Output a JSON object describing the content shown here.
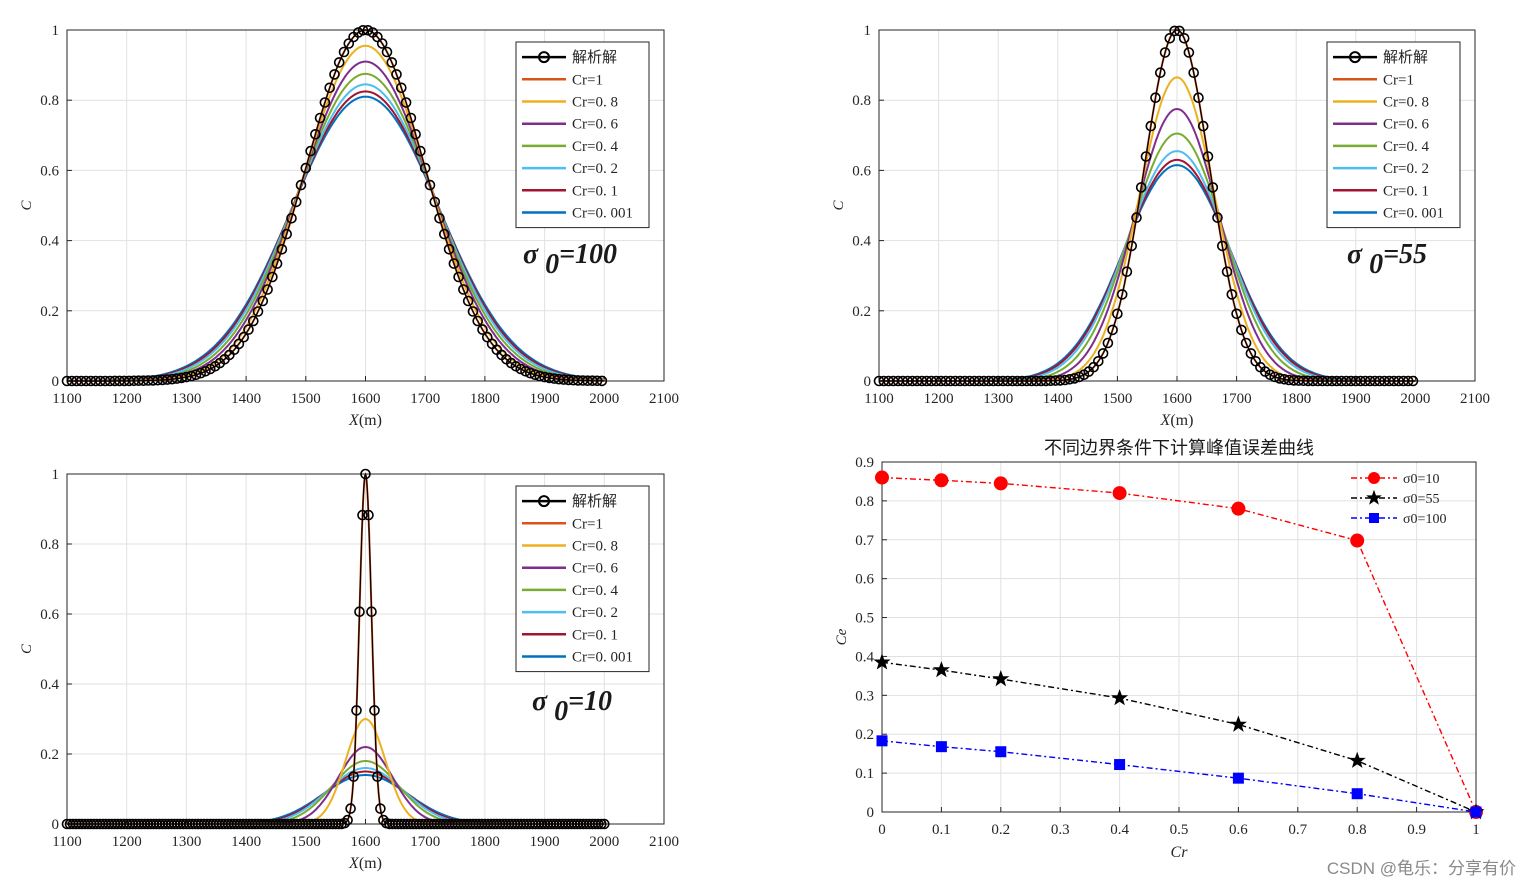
{
  "colors": {
    "analytic": "#000000",
    "cr": [
      "#d95319",
      "#edb120",
      "#7e2f8e",
      "#77ac30",
      "#4dbeee",
      "#a2142f",
      "#0072bd"
    ],
    "error_red": "#ff0000",
    "error_black": "#000000",
    "error_blue": "#0000ff",
    "grid": "#e1e1e1",
    "axis": "#262626"
  },
  "chart_data": [
    {
      "type": "line",
      "xlabel": "X",
      "xlabel_unit": "(m)",
      "ylabel": "C",
      "xlim": [
        1100,
        2100
      ],
      "ylim": [
        0,
        1
      ],
      "x_ticks": [
        "1100",
        "1200",
        "1300",
        "1400",
        "1500",
        "1600",
        "1700",
        "1800",
        "1900",
        "2000",
        "2100"
      ],
      "y_ticks": [
        "0",
        "0.2",
        "0.4",
        "0.6",
        "0.8",
        "1"
      ],
      "annotation": "σ 0=100",
      "annotation_symbol": "σ",
      "annotation_sub": "0",
      "annotation_value": "=100",
      "x_range": [
        1100,
        2000
      ],
      "center": 1600,
      "sigma0": 100,
      "legend": [
        "解析解",
        "Cr=1",
        "Cr=0. 8",
        "Cr=0. 6",
        "Cr=0. 4",
        "Cr=0. 2",
        "Cr=0. 1",
        "Cr=0. 001"
      ],
      "series": [
        {
          "name": "解析解",
          "marker": "circle",
          "peak": 1.0
        },
        {
          "name": "Cr=1",
          "peak": 1.0
        },
        {
          "name": "Cr=0. 8",
          "peak": 0.955
        },
        {
          "name": "Cr=0. 6",
          "peak": 0.91
        },
        {
          "name": "Cr=0. 4",
          "peak": 0.875
        },
        {
          "name": "Cr=0. 2",
          "peak": 0.845
        },
        {
          "name": "Cr=0. 1",
          "peak": 0.825
        },
        {
          "name": "Cr=0. 001",
          "peak": 0.81
        }
      ]
    },
    {
      "type": "line",
      "xlabel": "X",
      "xlabel_unit": "(m)",
      "ylabel": "C",
      "xlim": [
        1100,
        2100
      ],
      "ylim": [
        0,
        1
      ],
      "x_ticks": [
        "1100",
        "1200",
        "1300",
        "1400",
        "1500",
        "1600",
        "1700",
        "1800",
        "1900",
        "2000",
        "2100"
      ],
      "y_ticks": [
        "0",
        "0.2",
        "0.4",
        "0.6",
        "0.8",
        "1"
      ],
      "annotation": "σ 0=55",
      "annotation_symbol": "σ",
      "annotation_sub": "0",
      "annotation_value": "=55",
      "x_range": [
        1100,
        2000
      ],
      "center": 1600,
      "sigma0": 55,
      "legend": [
        "解析解",
        "Cr=1",
        "Cr=0. 8",
        "Cr=0. 6",
        "Cr=0. 4",
        "Cr=0. 2",
        "Cr=0. 1",
        "Cr=0. 001"
      ],
      "series": [
        {
          "name": "解析解",
          "marker": "circle",
          "peak": 1.0
        },
        {
          "name": "Cr=1",
          "peak": 1.0
        },
        {
          "name": "Cr=0. 8",
          "peak": 0.865
        },
        {
          "name": "Cr=0. 6",
          "peak": 0.775
        },
        {
          "name": "Cr=0. 4",
          "peak": 0.705
        },
        {
          "name": "Cr=0. 2",
          "peak": 0.655
        },
        {
          "name": "Cr=0. 1",
          "peak": 0.63
        },
        {
          "name": "Cr=0. 001",
          "peak": 0.615
        }
      ]
    },
    {
      "type": "line",
      "xlabel": "X",
      "xlabel_unit": "(m)",
      "ylabel": "C",
      "xlim": [
        1100,
        2100
      ],
      "ylim": [
        0,
        1
      ],
      "x_ticks": [
        "1100",
        "1200",
        "1300",
        "1400",
        "1500",
        "1600",
        "1700",
        "1800",
        "1900",
        "2000",
        "2100"
      ],
      "y_ticks": [
        "0",
        "0.2",
        "0.4",
        "0.6",
        "0.8",
        "1"
      ],
      "annotation": "σ 0=10",
      "annotation_symbol": "σ",
      "annotation_sub": "0",
      "annotation_value": "=10",
      "x_range": [
        1100,
        2000
      ],
      "center": 1600,
      "sigma0": 10,
      "legend": [
        "解析解",
        "Cr=1",
        "Cr=0. 8",
        "Cr=0. 6",
        "Cr=0. 4",
        "Cr=0. 2",
        "Cr=0. 1",
        "Cr=0. 001"
      ],
      "series": [
        {
          "name": "解析解",
          "marker": "circle",
          "peak": 1.0
        },
        {
          "name": "Cr=1",
          "peak": 1.0
        },
        {
          "name": "Cr=0. 8",
          "peak": 0.3
        },
        {
          "name": "Cr=0. 6",
          "peak": 0.22
        },
        {
          "name": "Cr=0. 4",
          "peak": 0.18
        },
        {
          "name": "Cr=0. 2",
          "peak": 0.16
        },
        {
          "name": "Cr=0. 1",
          "peak": 0.15
        },
        {
          "name": "Cr=0. 001",
          "peak": 0.14
        }
      ]
    },
    {
      "type": "line",
      "title": "不同边界条件下计算峰值误差曲线",
      "xlabel": "Cr",
      "ylabel": "Ce",
      "xlim": [
        0,
        1
      ],
      "ylim": [
        0,
        0.9
      ],
      "x_ticks": [
        "0",
        "0.1",
        "0.2",
        "0.3",
        "0.4",
        "0.5",
        "0.6",
        "0.7",
        "0.8",
        "0.9",
        "1"
      ],
      "y_ticks": [
        "0",
        "0.1",
        "0.2",
        "0.3",
        "0.4",
        "0.5",
        "0.6",
        "0.7",
        "0.8",
        "0.9"
      ],
      "x": [
        0,
        0.1,
        0.2,
        0.4,
        0.6,
        0.8,
        1
      ],
      "legend_position": "top-right",
      "series": [
        {
          "name": "σ0=10",
          "marker": "circle",
          "values": [
            0.86,
            0.853,
            0.845,
            0.82,
            0.78,
            0.698,
            0
          ]
        },
        {
          "name": "σ0=55",
          "marker": "star",
          "values": [
            0.385,
            0.365,
            0.342,
            0.293,
            0.225,
            0.132,
            0
          ]
        },
        {
          "name": "σ0=100",
          "marker": "square",
          "values": [
            0.183,
            0.168,
            0.155,
            0.122,
            0.087,
            0.047,
            0
          ]
        }
      ]
    }
  ],
  "watermark": "CSDN @龟乐：分享有价"
}
